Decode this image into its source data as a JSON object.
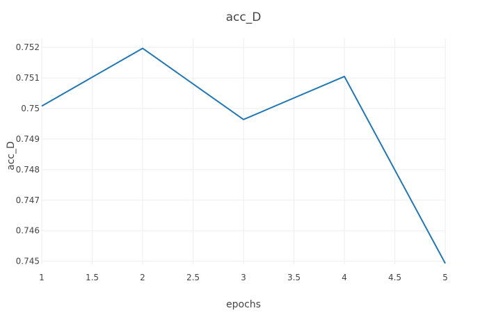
{
  "chart_data": {
    "type": "line",
    "title": "acc_D",
    "xlabel": "epochs",
    "ylabel": "acc_D",
    "x": [
      1,
      2,
      3,
      4,
      5
    ],
    "series": [
      {
        "values": [
          0.75008,
          0.75197,
          0.74964,
          0.75105,
          0.74493
        ],
        "color": "#1f77b4"
      }
    ],
    "xlim": [
      1,
      5
    ],
    "ylim": [
      0.7449,
      0.7523
    ],
    "xticks": [
      1,
      1.5,
      2,
      2.5,
      3,
      3.5,
      4,
      4.5,
      5
    ],
    "xtick_labels": [
      "1",
      "1.5",
      "2",
      "2.5",
      "3",
      "3.5",
      "4",
      "4.5",
      "5"
    ],
    "yticks": [
      0.745,
      0.746,
      0.747,
      0.748,
      0.749,
      0.75,
      0.751,
      0.752
    ],
    "ytick_labels": [
      "0.745",
      "0.746",
      "0.747",
      "0.748",
      "0.749",
      "0.75",
      "0.751",
      "0.752"
    ],
    "grid": true,
    "legend": "none"
  }
}
